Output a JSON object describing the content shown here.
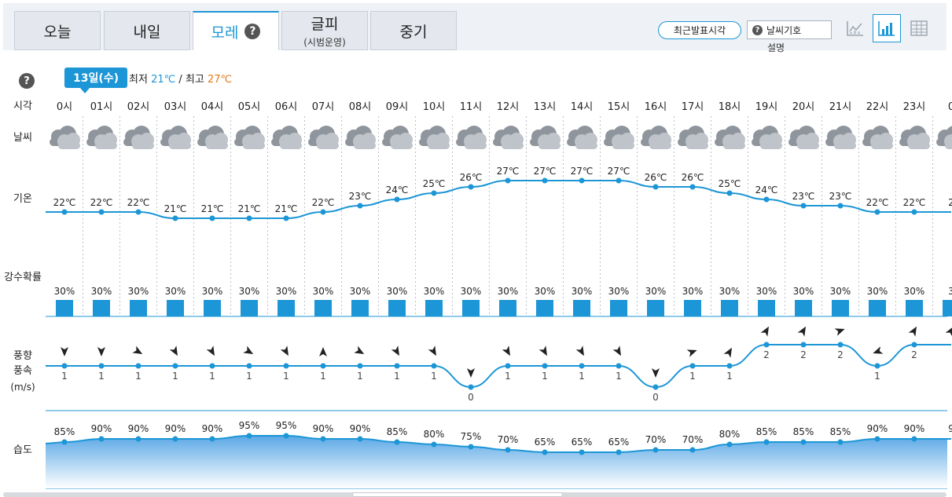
{
  "tabs": [
    {
      "label": "오늘",
      "sub": ""
    },
    {
      "label": "내일",
      "sub": ""
    },
    {
      "label": "모레",
      "sub": ""
    },
    {
      "label": "글피",
      "sub": "(시범운영)"
    },
    {
      "label": "중기",
      "sub": ""
    }
  ],
  "active_tab": 2,
  "help_glyph": "?",
  "toolbar": {
    "recent_label": "최근발표시각",
    "symbol_label": "날씨기호",
    "symbol_sub": "설명"
  },
  "date_badge": "13일(수)",
  "minmax": {
    "min_prefix": "최저",
    "min_value": "21℃",
    "separator": "/",
    "max_prefix": "최고",
    "max_value": "27℃"
  },
  "row_labels": {
    "time": "시각",
    "weather": "날씨",
    "temp": "기온",
    "precip": "강수확률",
    "wind_dir": "풍향",
    "wind_speed": "풍속",
    "wind_unit": "(m/s)",
    "humidity": "습도"
  },
  "colors": {
    "accent": "#1c96d6",
    "max_temp": "#e07a1c",
    "bar": "#1c96d6"
  },
  "icons": {
    "weather": "cloudy-icon",
    "view_line": "line-chart-icon",
    "view_bar": "bar-chart-icon",
    "view_table": "table-icon"
  },
  "chart_data": {
    "type": "line",
    "hours": [
      "0시",
      "01시",
      "02시",
      "03시",
      "04시",
      "05시",
      "06시",
      "07시",
      "08시",
      "09시",
      "10시",
      "11시",
      "12시",
      "13시",
      "14시",
      "15시",
      "16시",
      "17시",
      "18시",
      "19시",
      "20시",
      "21시",
      "22시",
      "23시",
      "0"
    ],
    "temperature": [
      22,
      22,
      22,
      21,
      21,
      21,
      21,
      22,
      23,
      24,
      25,
      26,
      27,
      27,
      27,
      27,
      26,
      26,
      25,
      24,
      23,
      23,
      22,
      22,
      2
    ],
    "temperature_unit": "℃",
    "precip_probability": [
      30,
      30,
      30,
      30,
      30,
      30,
      30,
      30,
      30,
      30,
      30,
      30,
      30,
      30,
      30,
      30,
      30,
      30,
      30,
      30,
      30,
      30,
      30,
      30,
      3
    ],
    "precip_unit": "%",
    "wind_speed": [
      1,
      1,
      1,
      1,
      1,
      1,
      1,
      1,
      1,
      1,
      1,
      0,
      1,
      1,
      1,
      1,
      0,
      1,
      1,
      2,
      2,
      2,
      1,
      2,
      2
    ],
    "wind_dir_deg": [
      180,
      180,
      120,
      150,
      150,
      120,
      150,
      0,
      120,
      150,
      150,
      180,
      150,
      150,
      150,
      150,
      180,
      70,
      30,
      30,
      30,
      70,
      250,
      30,
      30
    ],
    "humidity": [
      85,
      90,
      90,
      90,
      90,
      95,
      95,
      90,
      90,
      85,
      80,
      75,
      70,
      65,
      65,
      65,
      70,
      70,
      80,
      85,
      85,
      85,
      90,
      90,
      9
    ],
    "humidity_unit": "%"
  }
}
